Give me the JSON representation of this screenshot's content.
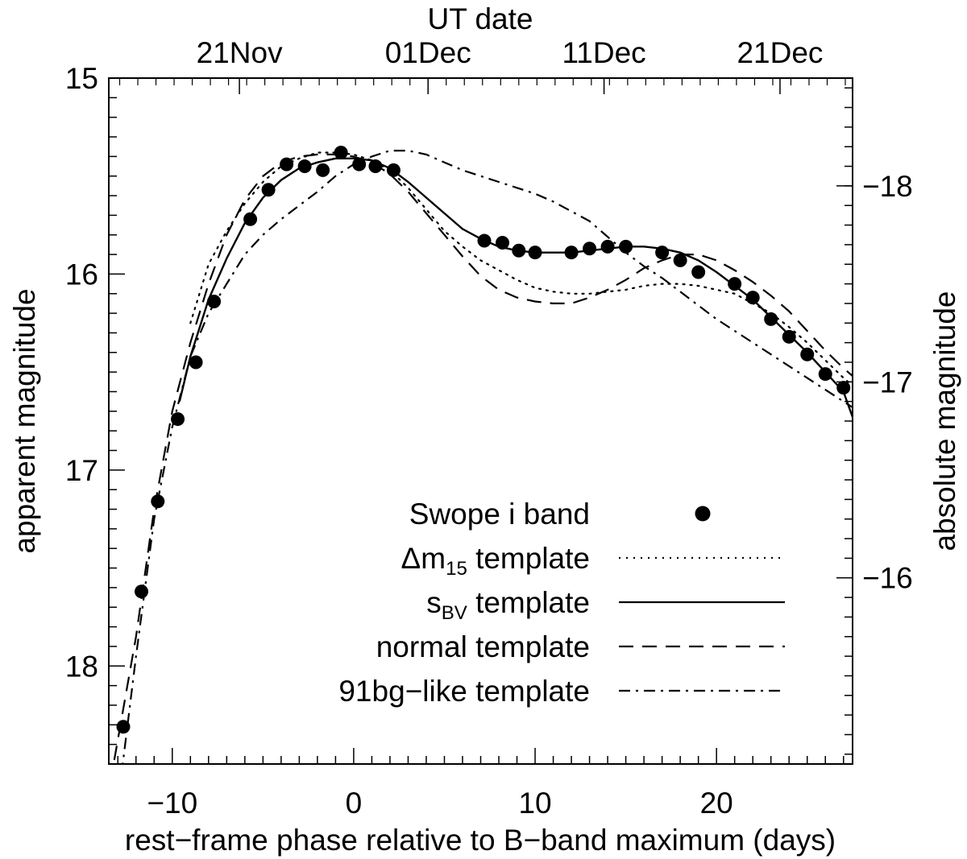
{
  "chart_data": {
    "type": "scatter",
    "top_axis_label": "UT date",
    "top_ticks": [
      {
        "x": -6.3,
        "label": "21Nov"
      },
      {
        "x": 4.1,
        "label": "01Dec"
      },
      {
        "x": 13.8,
        "label": "11Dec"
      },
      {
        "x": 23.5,
        "label": "21Dec"
      }
    ],
    "xlabel": "rest−frame phase relative to B−band maximum (days)",
    "ylabel": "apparent magnitude",
    "ylabel_right": "absolute magnitude",
    "xlim": [
      -13.5,
      27.5
    ],
    "ylim": [
      18.5,
      15.0
    ],
    "x_ticks": [
      -10,
      0,
      10,
      20
    ],
    "x_tick_labels": [
      "−10",
      "0",
      "10",
      "20"
    ],
    "y_ticks": [
      15,
      16,
      17,
      18
    ],
    "y_tick_labels": [
      "15",
      "16",
      "17",
      "18"
    ],
    "right_ticks": [
      {
        "mag": 15.55,
        "label": "−18"
      },
      {
        "mag": 16.55,
        "label": "−17"
      },
      {
        "mag": 17.55,
        "label": "−16"
      }
    ],
    "legend": [
      {
        "key": "points",
        "parts": [
          {
            "t": "Swope i band"
          }
        ]
      },
      {
        "key": "dm15",
        "parts": [
          {
            "t": "Δm"
          },
          {
            "t": "15",
            "sub": true
          },
          {
            "t": " template"
          }
        ]
      },
      {
        "key": "sbv",
        "parts": [
          {
            "t": "s"
          },
          {
            "t": "BV",
            "sub": true
          },
          {
            "t": " template"
          }
        ]
      },
      {
        "key": "normal",
        "parts": [
          {
            "t": "normal template"
          }
        ]
      },
      {
        "key": "bg91",
        "parts": [
          {
            "t": "91bg−like template"
          }
        ]
      }
    ],
    "series": [
      {
        "key": "points",
        "style": "markers",
        "x": [
          -12.7,
          -11.7,
          -10.8,
          -9.7,
          -8.7,
          -7.7,
          -5.7,
          -4.7,
          -3.7,
          -2.7,
          -1.7,
          -0.7,
          0.3,
          1.2,
          2.2,
          7.2,
          8.2,
          9.1,
          10.0,
          12.0,
          13.0,
          14.0,
          15.0,
          17.0,
          18.0,
          19.0,
          21.0,
          22.0,
          23.0,
          24.0,
          25.0,
          26.0,
          27.0
        ],
        "y": [
          18.31,
          17.62,
          17.16,
          16.74,
          16.45,
          16.14,
          15.72,
          15.57,
          15.44,
          15.45,
          15.47,
          15.38,
          15.44,
          15.45,
          15.47,
          15.83,
          15.84,
          15.88,
          15.89,
          15.89,
          15.87,
          15.86,
          15.86,
          15.89,
          15.93,
          15.99,
          16.05,
          16.12,
          16.23,
          16.32,
          16.41,
          16.51,
          16.58
        ]
      },
      {
        "key": "dm15",
        "style": "dotted",
        "x": [
          -9.0,
          -8.0,
          -7.0,
          -6.0,
          -5.0,
          -4.0,
          -3.0,
          -2.0,
          -1.0,
          0.0,
          1.0,
          2.0,
          3.0,
          4.0,
          5.0,
          6.0,
          7.0,
          8.0,
          9.0,
          10.0,
          11.0,
          12.0,
          13.0,
          14.0,
          15.0,
          16.0,
          17.0,
          18.0,
          19.0,
          20.0,
          21.0,
          22.0,
          23.0,
          24.0,
          25.0,
          26.0,
          27.0,
          27.5
        ],
        "y": [
          16.25,
          15.95,
          15.78,
          15.64,
          15.53,
          15.45,
          15.41,
          15.38,
          15.38,
          15.39,
          15.42,
          15.47,
          15.56,
          15.67,
          15.78,
          15.86,
          15.93,
          15.98,
          16.03,
          16.07,
          16.09,
          16.1,
          16.1,
          16.09,
          16.08,
          16.06,
          16.05,
          16.05,
          16.06,
          16.08,
          16.1,
          16.15,
          16.2,
          16.27,
          16.35,
          16.44,
          16.53,
          16.57
        ]
      },
      {
        "key": "sbv",
        "style": "solid",
        "x": [
          -9.6,
          -9.0,
          -8.0,
          -7.0,
          -6.0,
          -5.0,
          -4.0,
          -3.0,
          -2.0,
          -1.0,
          0.0,
          1.0,
          2.0,
          3.0,
          4.0,
          5.0,
          6.0,
          7.0,
          8.0,
          9.0,
          10.0,
          11.0,
          12.0,
          13.0,
          14.0,
          15.0,
          16.0,
          17.0,
          18.0,
          19.0,
          20.0,
          21.0,
          22.0,
          23.0,
          24.0,
          25.0,
          26.0,
          27.0,
          27.5
        ],
        "y": [
          16.65,
          16.42,
          16.13,
          15.92,
          15.74,
          15.61,
          15.52,
          15.46,
          15.43,
          15.41,
          15.41,
          15.42,
          15.46,
          15.53,
          15.61,
          15.69,
          15.77,
          15.82,
          15.86,
          15.88,
          15.89,
          15.89,
          15.89,
          15.88,
          15.87,
          15.86,
          15.86,
          15.87,
          15.89,
          15.93,
          15.99,
          16.06,
          16.13,
          16.22,
          16.31,
          16.4,
          16.5,
          16.6,
          16.73
        ]
      },
      {
        "key": "normal",
        "style": "dashed",
        "x": [
          -13.2,
          -12.0,
          -11.0,
          -10.0,
          -9.0,
          -8.0,
          -7.0,
          -6.0,
          -5.0,
          -4.0,
          -3.0,
          -2.0,
          -1.0,
          0.0,
          1.0,
          2.0,
          3.0,
          4.0,
          5.0,
          6.0,
          7.0,
          8.0,
          9.0,
          10.0,
          11.0,
          12.0,
          13.0,
          14.0,
          15.0,
          16.0,
          17.0,
          18.0,
          19.0,
          20.0,
          21.0,
          22.0,
          23.0,
          24.0,
          25.0,
          26.0,
          27.0,
          27.5
        ],
        "y": [
          18.48,
          17.85,
          17.2,
          16.7,
          16.35,
          16.05,
          15.8,
          15.62,
          15.5,
          15.43,
          15.4,
          15.39,
          15.39,
          15.4,
          15.43,
          15.49,
          15.58,
          15.69,
          15.8,
          15.91,
          16.01,
          16.08,
          16.12,
          16.14,
          16.15,
          16.15,
          16.12,
          16.08,
          16.03,
          15.97,
          15.93,
          15.9,
          15.9,
          15.93,
          15.98,
          16.04,
          16.11,
          16.19,
          16.29,
          16.39,
          16.48,
          16.52
        ]
      },
      {
        "key": "bg91",
        "style": "dashdot",
        "x": [
          -12.8,
          -12.0,
          -11.0,
          -10.0,
          -9.0,
          -8.0,
          -7.0,
          -6.0,
          -5.0,
          -4.0,
          -3.0,
          -2.0,
          -1.0,
          0.0,
          1.0,
          2.0,
          3.0,
          4.0,
          5.0,
          6.0,
          7.0,
          8.0,
          9.0,
          10.0,
          11.0,
          12.0,
          13.0,
          14.0,
          15.0,
          16.0,
          17.0,
          18.0,
          19.0,
          20.0,
          21.0,
          22.0,
          23.0,
          24.0,
          25.0,
          26.0,
          27.0,
          27.5
        ],
        "y": [
          18.55,
          17.95,
          17.25,
          16.78,
          16.42,
          16.2,
          16.05,
          15.9,
          15.8,
          15.72,
          15.65,
          15.58,
          15.5,
          15.44,
          15.4,
          15.37,
          15.37,
          15.39,
          15.43,
          15.47,
          15.5,
          15.53,
          15.56,
          15.59,
          15.63,
          15.68,
          15.73,
          15.81,
          15.89,
          15.96,
          16.02,
          16.09,
          16.16,
          16.23,
          16.29,
          16.35,
          16.41,
          16.47,
          16.53,
          16.59,
          16.65,
          16.68
        ]
      }
    ]
  }
}
